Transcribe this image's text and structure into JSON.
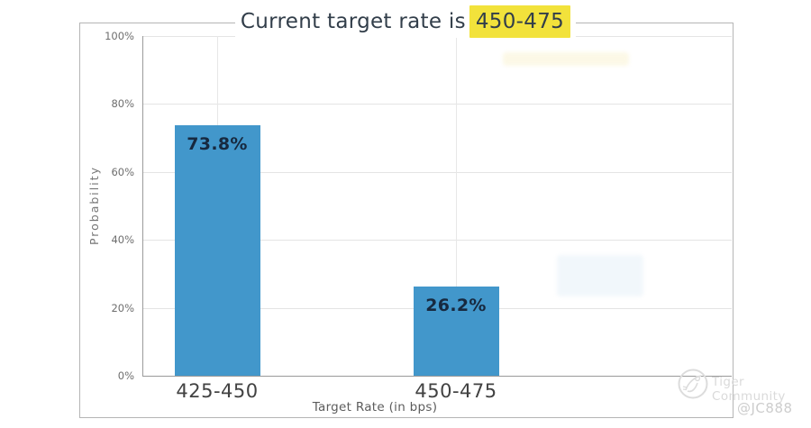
{
  "page": {
    "title_prefix": "Current target rate is",
    "title_highlight": "450-475",
    "highlight_color": "#f2e23b",
    "title_color": "#323e4a"
  },
  "chart_data": {
    "type": "bar",
    "title": "Current target rate is 450-475",
    "categories": [
      "425-450",
      "450-475"
    ],
    "values": [
      73.8,
      26.2
    ],
    "value_labels": [
      "73.8%",
      "26.2%"
    ],
    "xlabel": "Target Rate (in bps)",
    "ylabel": "Probability",
    "ylim": [
      0,
      100
    ],
    "y_tick_values": [
      0,
      20,
      40,
      60,
      80,
      100
    ],
    "y_tick_labels": [
      "0%",
      "20%",
      "40%",
      "60%",
      "80%",
      "100%"
    ],
    "grid": true,
    "legend": "none",
    "bar_color": "#4297cb",
    "bar_label_color": "#17293f"
  },
  "watermark": {
    "logo_icon": "tiger-circle-logo",
    "brand": "Tiger Community",
    "user": "@JC888"
  }
}
